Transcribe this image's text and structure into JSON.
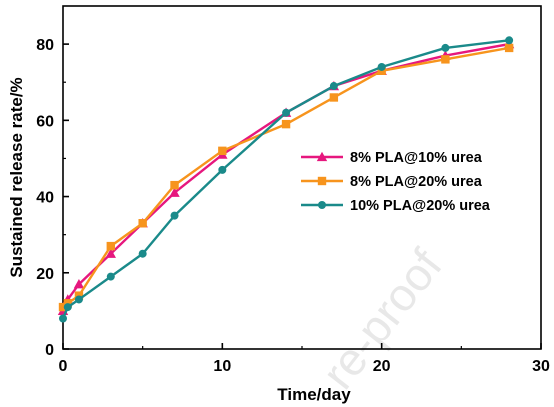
{
  "chart_data": {
    "type": "line",
    "xlabel": "Time/day",
    "ylabel": "Sustained release rate/%",
    "xlim": [
      0,
      30
    ],
    "ylim": [
      0,
      90
    ],
    "xticks": [
      0,
      10,
      20,
      30
    ],
    "yticks": [
      0,
      20,
      40,
      60,
      80
    ],
    "grid": false,
    "legend_position": "right",
    "watermark": "re-proof",
    "series": [
      {
        "name": "8% PLA@10% urea",
        "color": "#e6177e",
        "marker": "triangle",
        "x": [
          0,
          0.3,
          1,
          3,
          5,
          7,
          10,
          14,
          17,
          20,
          24,
          28
        ],
        "y": [
          10,
          13,
          17,
          25,
          33,
          41,
          51,
          62,
          69,
          73,
          77,
          80
        ]
      },
      {
        "name": "8% PLA@20% urea",
        "color": "#f7941d",
        "marker": "square",
        "x": [
          0,
          0.3,
          1,
          3,
          5,
          7,
          10,
          14,
          17,
          20,
          24,
          28
        ],
        "y": [
          11,
          12,
          14,
          27,
          33,
          43,
          52,
          59,
          66,
          73,
          76,
          79
        ]
      },
      {
        "name": "10% PLA@20% urea",
        "color": "#1a8a8a",
        "marker": "circle",
        "x": [
          0,
          0.3,
          1,
          3,
          5,
          7,
          10,
          14,
          17,
          20,
          24,
          28
        ],
        "y": [
          8,
          11,
          13,
          19,
          25,
          35,
          47,
          62,
          69,
          74,
          79,
          81
        ]
      }
    ]
  }
}
